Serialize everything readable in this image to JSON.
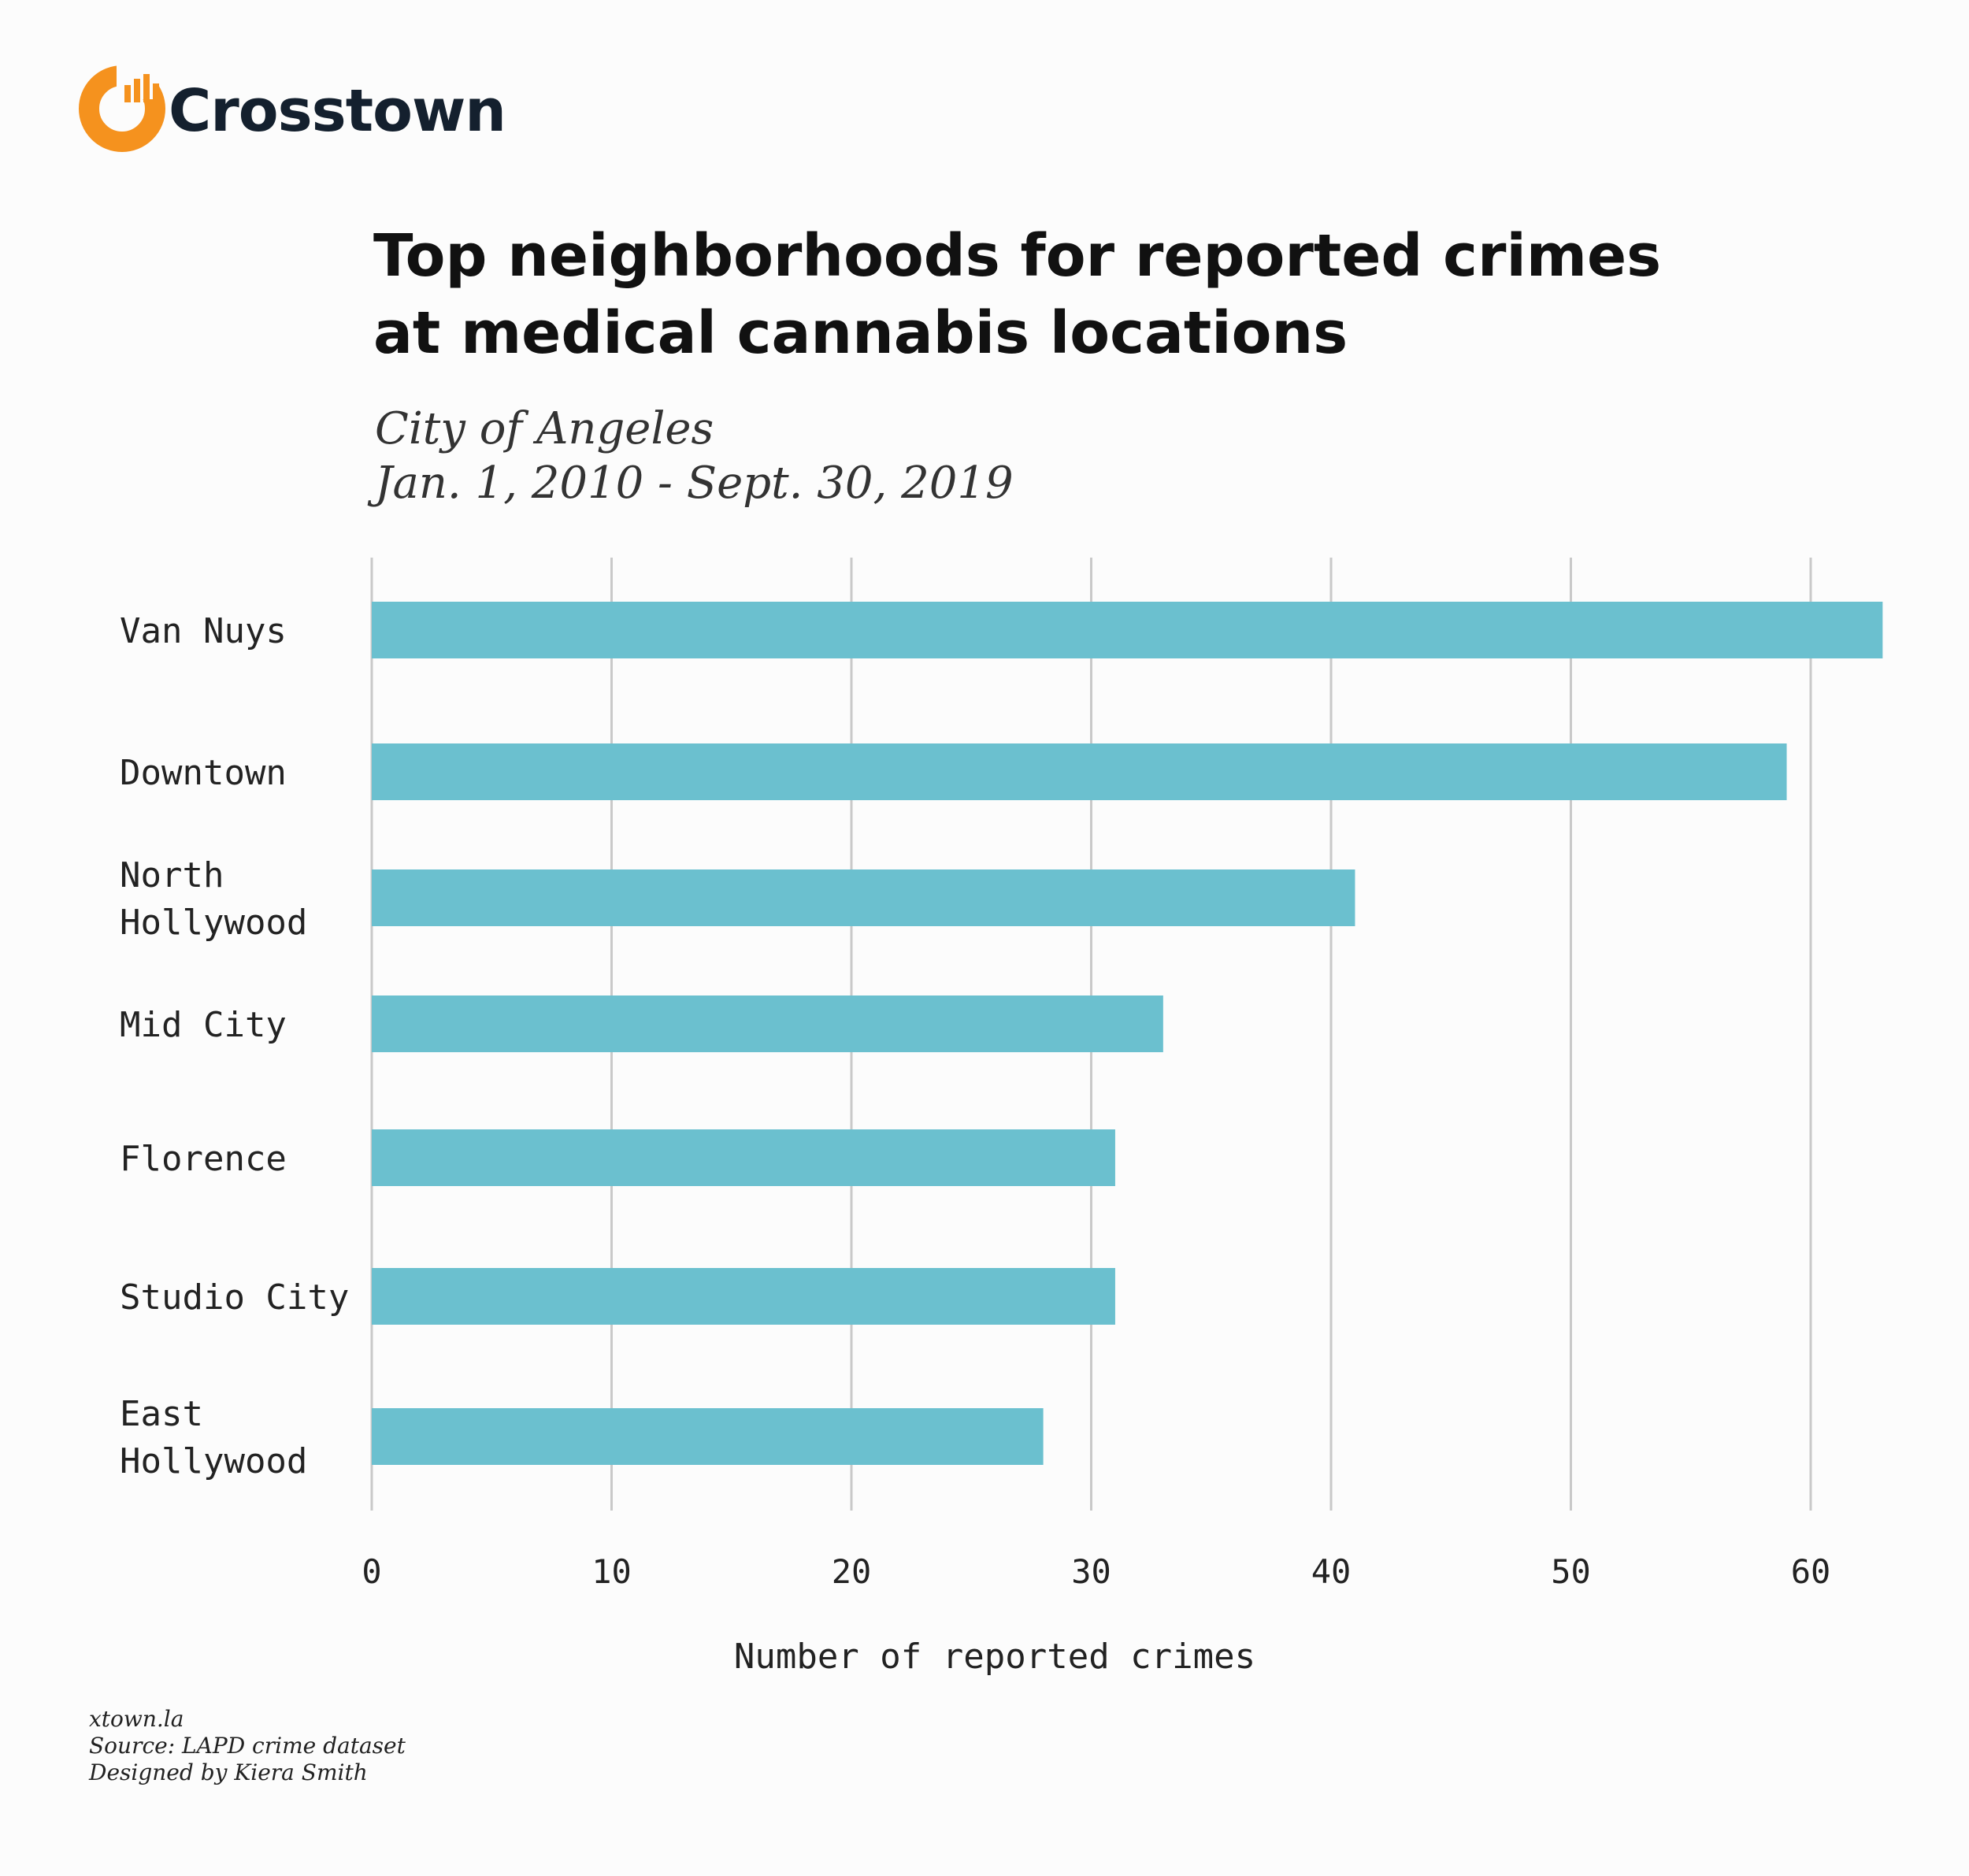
{
  "brand": {
    "name": "Crosstown",
    "accent_color": "#f5921e",
    "text_color": "#14202e",
    "icon": "crosstown-logo-icon"
  },
  "chart_data": {
    "type": "bar",
    "orientation": "horizontal",
    "title_lines": [
      "Top neighborhoods for reported crimes",
      "at medical cannabis locations"
    ],
    "subtitle_lines": [
      "City of Angeles",
      "Jan. 1, 2010 - Sept. 30, 2019"
    ],
    "categories": [
      [
        "Van Nuys"
      ],
      [
        "Downtown"
      ],
      [
        "North",
        "Hollywood"
      ],
      [
        "Mid City"
      ],
      [
        "Florence"
      ],
      [
        "Studio City"
      ],
      [
        "East",
        "Hollywood"
      ]
    ],
    "values": [
      63,
      59,
      41,
      33,
      31,
      31,
      28
    ],
    "xticks": [
      0,
      10,
      20,
      30,
      40,
      50,
      60
    ],
    "xlim": [
      0,
      63
    ],
    "xlabel": "Number of reported crimes",
    "ylabel": "",
    "bar_color": "#6bc0cf",
    "grid": true,
    "legend": "none"
  },
  "footer": {
    "lines": [
      "xtown.la",
      "Source: LAPD crime dataset",
      "Designed by Kiera Smith"
    ]
  }
}
